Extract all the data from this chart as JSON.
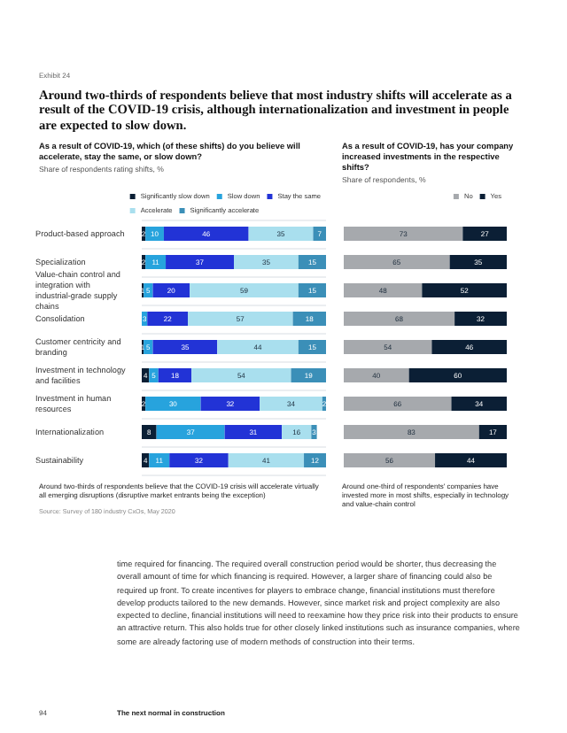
{
  "chart_data": [
    {
      "type": "bar",
      "orientation": "horizontal",
      "stacked": true,
      "data_labels": true,
      "grid": "y",
      "legend": "top right",
      "tick_labels": "y",
      "title": "As a result of COVID-19, which (of these shifts) do you believe will accelerate, stay the same, or slow down?",
      "subtitle": "Share of respondents rating shifts, %",
      "annotations": [
        "Exhibit 24",
        "Around two-thirds of respondents believe that most industry shifts will accelerate as a result of the COVID-19 crisis, although internationalization and investment in people are expected to slow down.",
        "Around two-thirds of respondents believe that the COVID-19 crisis will accelerate virtually all emerging disruptions (disruptive market entrants being the exception)",
        "Source: Survey of 180 industry CxOs, May 2020",
        "time required for financing. The required overall construction period would be shorter, thus decreasing the overall amount of time for which financing is required. However, a larger share of financing could also be required up front. To create incentives for players to embrace change, financial institutions must therefore develop products tailored to the new demands. However, since market risk and project complexity are also expected to decline, financial institutions will need to reexamine how they price risk into their products to ensure an attractive return. This also holds true for other closely linked institutions such as insurance companies, where some are already factoring use of modern methods of construction into their terms.",
        "94",
        "The next normal in construction"
      ],
      "categories": [
        "Product-based approach",
        "Specialization",
        "Value-chain control and integration with industrial-grade supply chains",
        "Consolidation",
        "Customer centricity and branding",
        "Investment in technology and facilities",
        "Investment in human resources",
        "Internationalization",
        "Sustainability"
      ],
      "series": [
        {
          "name": "Significantly slow down",
          "color": "#0b1f35",
          "values": [
            2,
            2,
            1,
            null,
            1,
            4,
            2,
            8,
            4
          ]
        },
        {
          "name": "Slow down",
          "color": "#27a3dd",
          "values": [
            10,
            11,
            5,
            3,
            5,
            5,
            30,
            37,
            11
          ]
        },
        {
          "name": "Stay the same",
          "color": "#2233d6",
          "values": [
            46,
            37,
            20,
            22,
            35,
            18,
            32,
            31,
            32
          ]
        },
        {
          "name": "Accelerate",
          "color": "#a9dfee",
          "values": [
            35,
            35,
            59,
            57,
            44,
            54,
            34,
            16,
            41
          ]
        },
        {
          "name": "Significantly accelerate",
          "color": "#3b8fb8",
          "values": [
            7,
            15,
            15,
            18,
            15,
            19,
            2,
            3,
            12
          ]
        }
      ]
    },
    {
      "type": "bar",
      "orientation": "horizontal",
      "stacked": true,
      "data_labels": true,
      "legend": "top right",
      "tick_labels": false,
      "title": "As a result of COVID-19, has your company increased investments in the respective shifts?",
      "subtitle": "Share of respondents, %",
      "annotations": [
        "Around one-third of respondents' companies have invested more in most shifts, especially in technology and value-chain control"
      ],
      "categories": [
        null,
        null,
        null,
        null,
        null,
        null,
        null,
        null,
        null
      ],
      "series": [
        {
          "name": "No",
          "color": "#a6a9ad",
          "values": [
            73,
            65,
            48,
            68,
            54,
            40,
            66,
            83,
            56
          ]
        },
        {
          "name": "Yes",
          "color": "#0b1f35",
          "values": [
            27,
            35,
            52,
            32,
            46,
            60,
            34,
            17,
            44
          ]
        }
      ]
    }
  ]
}
